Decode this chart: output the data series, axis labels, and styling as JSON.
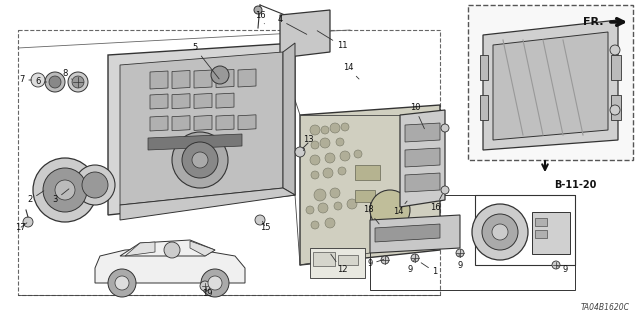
{
  "background_color": "#ffffff",
  "diagram_code": "TA04B1620C",
  "ref_code": "B-11-20",
  "figsize": [
    6.4,
    3.19
  ],
  "dpi": 100,
  "gc": "#333333",
  "gray_light": "#e0e0e0",
  "gray_med": "#bbbbbb",
  "gray_dark": "#888888"
}
